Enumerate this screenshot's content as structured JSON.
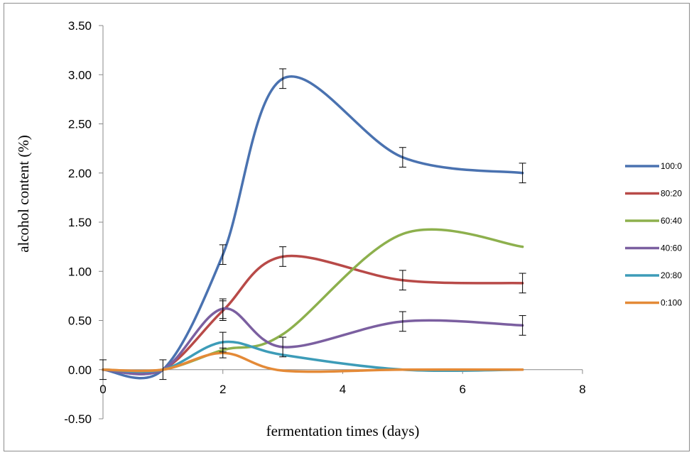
{
  "chart_data": {
    "type": "line",
    "title": "",
    "xlabel": "fermentation times (days)",
    "ylabel": "alcohol content (%)",
    "xlim": [
      0,
      8
    ],
    "ylim": [
      -0.5,
      3.5
    ],
    "x_ticks": [
      "0",
      "2",
      "4",
      "6",
      "8"
    ],
    "y_ticks": [
      "-0.50",
      "0.00",
      "0.50",
      "1.00",
      "1.50",
      "2.00",
      "2.50",
      "3.00",
      "3.50"
    ],
    "grid": false,
    "legend_position": "right",
    "series": [
      {
        "name": "100:0",
        "color": "#4a72b0",
        "points": [
          [
            0,
            0
          ],
          [
            1,
            0
          ],
          [
            2,
            1.17
          ],
          [
            3,
            2.96
          ],
          [
            5,
            2.16
          ],
          [
            7,
            2.0
          ]
        ],
        "errors": [
          [
            0,
            0.1
          ],
          [
            1,
            0.1
          ],
          [
            2,
            0.1
          ],
          [
            3,
            0.1
          ],
          [
            5,
            0.1
          ],
          [
            7,
            0.1
          ]
        ]
      },
      {
        "name": "80:20",
        "color": "#b84a48",
        "points": [
          [
            0,
            0
          ],
          [
            1,
            0
          ],
          [
            2,
            0.6
          ],
          [
            3,
            1.15
          ],
          [
            5,
            0.91
          ],
          [
            7,
            0.88
          ]
        ],
        "errors": [
          [
            2,
            0.1
          ],
          [
            3,
            0.1
          ],
          [
            5,
            0.1
          ],
          [
            7,
            0.1
          ]
        ]
      },
      {
        "name": "60:40",
        "color": "#8db04d",
        "points": [
          [
            0,
            0
          ],
          [
            1,
            0
          ],
          [
            2,
            0.2
          ],
          [
            3,
            0.36
          ],
          [
            5,
            1.38
          ],
          [
            7,
            1.25
          ]
        ],
        "errors": []
      },
      {
        "name": "40:60",
        "color": "#7b5fa0",
        "points": [
          [
            0,
            0
          ],
          [
            1,
            0
          ],
          [
            2,
            0.62
          ],
          [
            3,
            0.23
          ],
          [
            5,
            0.49
          ],
          [
            7,
            0.45
          ]
        ],
        "errors": [
          [
            2,
            0.1
          ],
          [
            3,
            0.1
          ],
          [
            5,
            0.1
          ],
          [
            7,
            0.1
          ]
        ]
      },
      {
        "name": "20:80",
        "color": "#3d9cb8",
        "points": [
          [
            0,
            0
          ],
          [
            1,
            0
          ],
          [
            2,
            0.28
          ],
          [
            3,
            0.15
          ],
          [
            5,
            0
          ],
          [
            7,
            0
          ]
        ],
        "errors": [
          [
            2,
            0.1
          ]
        ]
      },
      {
        "name": "0:100",
        "color": "#e48a37",
        "points": [
          [
            0,
            0
          ],
          [
            1,
            0
          ],
          [
            2,
            0.17
          ],
          [
            3,
            -0.01
          ],
          [
            5,
            0
          ],
          [
            7,
            0
          ]
        ],
        "errors": [
          [
            2,
            0.05
          ]
        ]
      }
    ]
  }
}
